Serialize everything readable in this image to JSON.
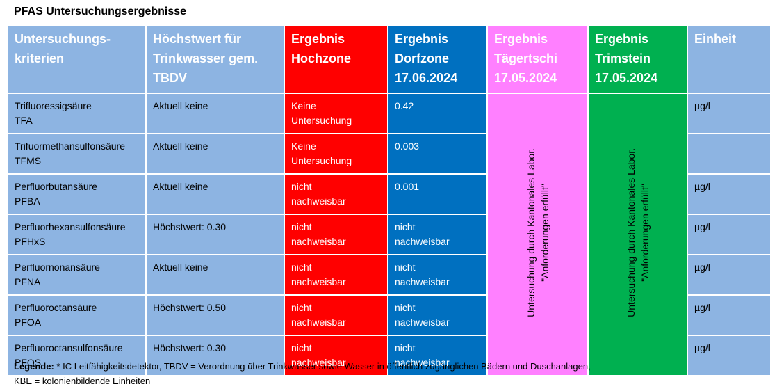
{
  "title": "PFAS Untersuchungsergebnisse",
  "table": {
    "header": [
      "Untersuchungs-\nkriterien",
      "Höchstwert für\nTrinkwasser gem.\nTBDV",
      "Ergebnis\nHochzone",
      "Ergebnis\nDorfzone\n17.06.2024",
      "Ergebnis\nTägertschi\n17.05.2024",
      "Ergebnis\nTrimstein\n17.05.2024",
      "Einheit"
    ],
    "rows": [
      {
        "name": "Trifluoressigsäure\nTFA",
        "limit": "Aktuell keine",
        "hochzone": "Keine\nUntersuchung",
        "dorfzone": "0.42",
        "einheit": "µg/l"
      },
      {
        "name": "Trifuormethansulfonsäure\nTFMS",
        "limit": "Aktuell keine",
        "hochzone": "Keine\nUntersuchung",
        "dorfzone": "0.003"
      },
      {
        "name": "Perfluorbutansäure\nPFBA",
        "limit": "Aktuell keine",
        "hochzone": "nicht\nnachweisbar",
        "dorfzone": "0.001",
        "einheit": "µg/l"
      },
      {
        "name": "Perfluorhexansulfonsäure\nPFHxS",
        "limit": "Höchstwert: 0.30",
        "hochzone": "nicht\nnachweisbar",
        "dorfzone": "nicht\nnachweisbar",
        "einheit": "µg/l"
      },
      {
        "name": "Perfluornonansäure\nPFNA",
        "limit": "Aktuell keine",
        "hochzone": "nicht\nnachweisbar",
        "dorfzone": "nicht\nnachweisbar",
        "einheit": "µg/l"
      },
      {
        "name": "Perfluoroctansäure\nPFOA",
        "limit": "Höchstwert: 0.50",
        "hochzone": "nicht\nnachweisbar",
        "dorfzone": "nicht\nnachweisbar",
        "einheit": "µg/l"
      },
      {
        "name": "Perfluoroctansulfonsäure\nPFOS",
        "limit": "Höchstwert: 0.30",
        "hochzone": "nicht\nnachweisbar",
        "dorfzone": "nicht\nnachweisbar",
        "einheit": "µg/l"
      }
    ],
    "taegertschi": "Untersuchung durch Kantonales Labor.\n\"Anforderungen erfüllt\"",
    "trimstein": "Untersuchung durch Kantonales Labor.\n\"Anforderungen erfüllt\""
  },
  "legend": {
    "label": "Legende:",
    "text": " * IC Leitfähigkeitsdetektor, TBDV = Verordnung über Trinkwasser sowie Wasser in öffentlich zugänglichen Bädern und Duschanlagen,\nKBE = kolonienbildende Einheiten"
  }
}
